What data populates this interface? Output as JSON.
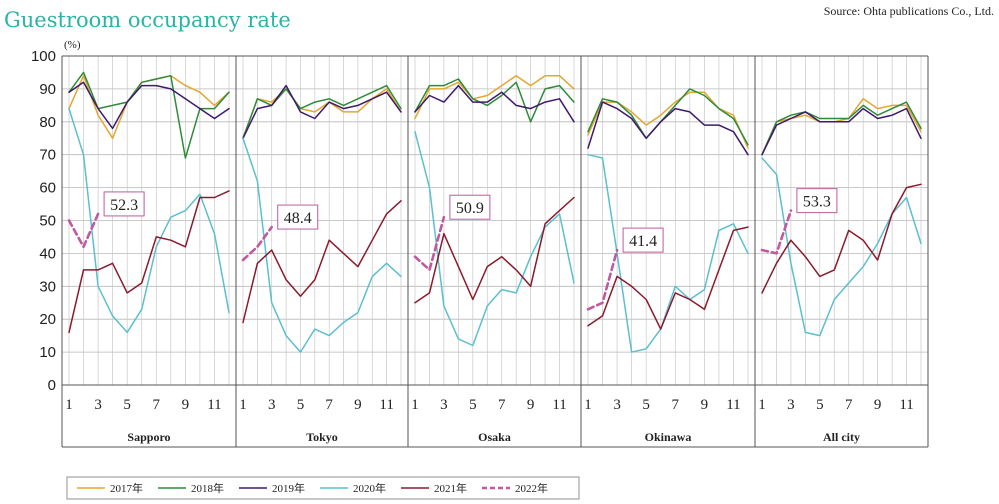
{
  "chart_data": {
    "type": "line",
    "title": "Guestroom occupancy rate",
    "source": "Source: Ohta publications Co., Ltd.",
    "unit_label": "(%)",
    "ylim": [
      0,
      100
    ],
    "y_ticks": [
      "0",
      "10",
      "20",
      "30",
      "40",
      "50",
      "60",
      "70",
      "80",
      "90",
      "100"
    ],
    "month_tick_labels": [
      "1",
      "3",
      "5",
      "7",
      "9",
      "11"
    ],
    "grid": true,
    "legend_position": "bottom",
    "series_meta": [
      {
        "name": "2017年",
        "color": "#e3a72f",
        "dashed": false
      },
      {
        "name": "2018年",
        "color": "#2e8b3a",
        "dashed": false
      },
      {
        "name": "2019年",
        "color": "#3f1a6b",
        "dashed": false
      },
      {
        "name": "2020年",
        "color": "#5bbfcf",
        "dashed": false
      },
      {
        "name": "2021年",
        "color": "#8b1a2b",
        "dashed": false
      },
      {
        "name": "2022年",
        "color": "#c05a9e",
        "dashed": true
      }
    ],
    "panels": [
      {
        "name": "Sapporo",
        "callout": "52.3",
        "series": {
          "2017年": [
            84,
            94,
            82,
            75,
            86,
            92,
            93,
            94,
            91,
            89,
            85,
            89
          ],
          "2018年": [
            89,
            95,
            84,
            85,
            86,
            92,
            93,
            94,
            69,
            84,
            84,
            89
          ],
          "2019年": [
            89,
            92,
            84,
            78,
            86,
            91,
            91,
            90,
            87,
            84,
            81,
            84
          ],
          "2020年": [
            84,
            70,
            30,
            21,
            16,
            23,
            42,
            51,
            53,
            58,
            46,
            22
          ],
          "2021年": [
            16,
            35,
            35,
            37,
            28,
            31,
            45,
            44,
            42,
            57,
            57,
            59
          ],
          "2022年": [
            50,
            42,
            52
          ]
        }
      },
      {
        "name": "Tokyo",
        "callout": "48.4",
        "series": {
          "2017年": [
            75,
            87,
            86,
            90,
            84,
            83,
            86,
            83,
            83,
            87,
            90,
            83
          ],
          "2018年": [
            75,
            87,
            85,
            90,
            84,
            86,
            87,
            85,
            87,
            89,
            91,
            84
          ],
          "2019年": [
            75,
            84,
            85,
            91,
            83,
            81,
            86,
            84,
            85,
            87,
            89,
            83
          ],
          "2020年": [
            75,
            62,
            25,
            15,
            10,
            17,
            15,
            19,
            22,
            33,
            37,
            33
          ],
          "2021年": [
            19,
            37,
            41,
            32,
            27,
            32,
            44,
            40,
            36,
            44,
            52,
            56
          ],
          "2022年": [
            38,
            42,
            48
          ]
        }
      },
      {
        "name": "Osaka",
        "callout": "50.9",
        "series": {
          "2017年": [
            81,
            90,
            90,
            92,
            87,
            88,
            91,
            94,
            91,
            94,
            94,
            90
          ],
          "2018年": [
            83,
            91,
            91,
            93,
            87,
            85,
            88,
            92,
            80,
            90,
            91,
            86
          ],
          "2019年": [
            83,
            88,
            86,
            91,
            86,
            86,
            89,
            85,
            84,
            86,
            87,
            80
          ],
          "2020年": [
            77,
            60,
            24,
            14,
            12,
            24,
            29,
            28,
            39,
            48,
            52,
            31
          ],
          "2021年": [
            25,
            28,
            46,
            36,
            26,
            36,
            39,
            35,
            30,
            49,
            53,
            57
          ],
          "2022年": [
            39,
            35,
            51
          ]
        }
      },
      {
        "name": "Okinawa",
        "callout": "41.4",
        "series": {
          "2017年": [
            76,
            86,
            86,
            83,
            79,
            82,
            86,
            89,
            89,
            84,
            82,
            72
          ],
          "2018年": [
            77,
            87,
            86,
            82,
            75,
            80,
            85,
            90,
            88,
            84,
            81,
            73
          ],
          "2019年": [
            72,
            86,
            84,
            81,
            75,
            80,
            84,
            83,
            79,
            79,
            77,
            70
          ],
          "2020年": [
            70,
            69,
            40,
            10,
            11,
            17,
            30,
            26,
            29,
            47,
            49,
            40
          ],
          "2021年": [
            18,
            21,
            33,
            30,
            26,
            17,
            28,
            26,
            23,
            35,
            47,
            48
          ],
          "2022年": [
            23,
            25,
            41
          ]
        }
      },
      {
        "name": "All city",
        "callout": "53.3",
        "series": {
          "2017年": [
            70,
            80,
            81,
            82,
            80,
            80,
            81,
            87,
            84,
            85,
            85,
            77
          ],
          "2018年": [
            70,
            80,
            82,
            83,
            81,
            81,
            81,
            85,
            82,
            84,
            86,
            78
          ],
          "2019年": [
            70,
            79,
            81,
            83,
            80,
            80,
            80,
            84,
            81,
            82,
            84,
            75
          ],
          "2020年": [
            69,
            64,
            37,
            16,
            15,
            26,
            31,
            36,
            43,
            52,
            57,
            43
          ],
          "2021年": [
            28,
            37,
            44,
            39,
            33,
            35,
            47,
            44,
            38,
            52,
            60,
            61
          ],
          "2022年": [
            41,
            40,
            53
          ]
        }
      }
    ]
  }
}
